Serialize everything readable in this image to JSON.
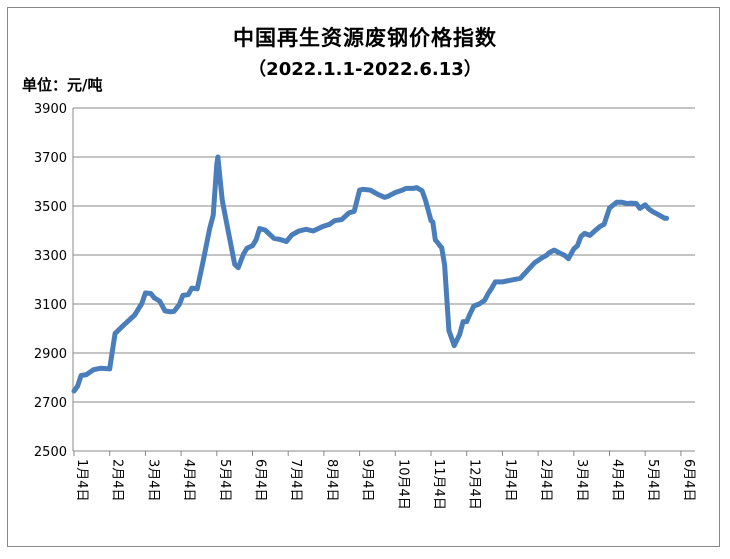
{
  "chart_data": {
    "type": "line",
    "title": "中国再生资源废钢价格指数",
    "subtitle": "（2022.1.1-2022.6.13）",
    "ylabel": "单位：元/吨",
    "ylim": [
      2500,
      3900
    ],
    "yticks": [
      2500,
      2700,
      2900,
      3100,
      3300,
      3500,
      3700,
      3900
    ],
    "categories": [
      "1月4日",
      "2月4日",
      "3月4日",
      "4月4日",
      "5月4日",
      "6月4日",
      "7月4日",
      "8月4日",
      "9月4日",
      "10月4日",
      "11月4日",
      "12月4日",
      "1月4日",
      "2月4日",
      "3月4日",
      "4月4日",
      "5月4日",
      "6月4日"
    ],
    "grid": true,
    "series": [
      {
        "color": "#4a7ebb",
        "x": [
          0,
          0.1,
          0.2,
          0.35,
          0.55,
          0.75,
          1.0,
          1.05,
          1.15,
          1.4,
          1.7,
          1.9,
          2.0,
          2.15,
          2.25,
          2.4,
          2.55,
          2.7,
          2.8,
          2.95,
          3.05,
          3.2,
          3.3,
          3.45,
          3.6,
          3.8,
          3.9,
          4.0,
          4.03,
          4.08,
          4.15,
          4.25,
          4.35,
          4.5,
          4.6,
          4.75,
          4.85,
          5.0,
          5.1,
          5.2,
          5.35,
          5.6,
          5.75,
          5.95,
          6.1,
          6.3,
          6.5,
          6.7,
          6.9,
          7.0,
          7.15,
          7.3,
          7.5,
          7.7,
          7.85,
          8.0,
          8.1,
          8.3,
          8.5,
          8.7,
          8.8,
          9.0,
          9.2,
          9.3,
          9.5,
          9.6,
          9.75,
          9.85,
          10.0,
          10.05,
          10.12,
          10.2,
          10.25,
          10.3,
          10.38,
          10.5,
          10.65,
          10.8,
          10.9,
          11.0,
          11.1,
          11.2,
          11.35,
          11.5,
          11.6,
          11.7,
          11.8,
          12.0,
          12.05,
          12.5,
          12.9,
          13.0,
          13.1,
          13.25,
          13.3,
          13.45,
          13.6,
          13.75,
          13.85,
          14.0,
          14.1,
          14.2,
          14.3,
          14.45,
          14.6,
          14.75,
          14.85,
          15.0,
          15.2,
          15.35,
          15.5,
          15.6,
          15.75,
          15.85,
          15.95,
          16.0,
          16.1,
          16.2,
          16.3,
          16.45,
          16.55,
          16.6
        ],
        "values": [
          2745,
          2765,
          2808,
          2812,
          2832,
          2838,
          2835,
          2885,
          2980,
          3015,
          3055,
          3102,
          3145,
          3143,
          3125,
          3112,
          3072,
          3068,
          3070,
          3098,
          3135,
          3138,
          3165,
          3162,
          3262,
          3408,
          3462,
          3670,
          3700,
          3625,
          3525,
          3450,
          3375,
          3262,
          3248,
          3305,
          3328,
          3338,
          3362,
          3408,
          3402,
          3368,
          3364,
          3355,
          3382,
          3398,
          3405,
          3398,
          3412,
          3418,
          3425,
          3440,
          3445,
          3472,
          3478,
          3565,
          3568,
          3565,
          3548,
          3535,
          3540,
          3555,
          3565,
          3572,
          3572,
          3575,
          3562,
          3522,
          3440,
          3435,
          3362,
          3348,
          3338,
          3330,
          3260,
          2992,
          2930,
          2975,
          3028,
          3028,
          3062,
          3092,
          3100,
          3115,
          3142,
          3165,
          3190,
          3190,
          3192,
          3205,
          3268,
          3278,
          3288,
          3300,
          3308,
          3320,
          3308,
          3298,
          3285,
          3325,
          3338,
          3375,
          3388,
          3380,
          3400,
          3418,
          3425,
          3492,
          3515,
          3515,
          3510,
          3512,
          3510,
          3490,
          3500,
          3505,
          3488,
          3478,
          3470,
          3458,
          3450,
          3450
        ]
      }
    ]
  }
}
